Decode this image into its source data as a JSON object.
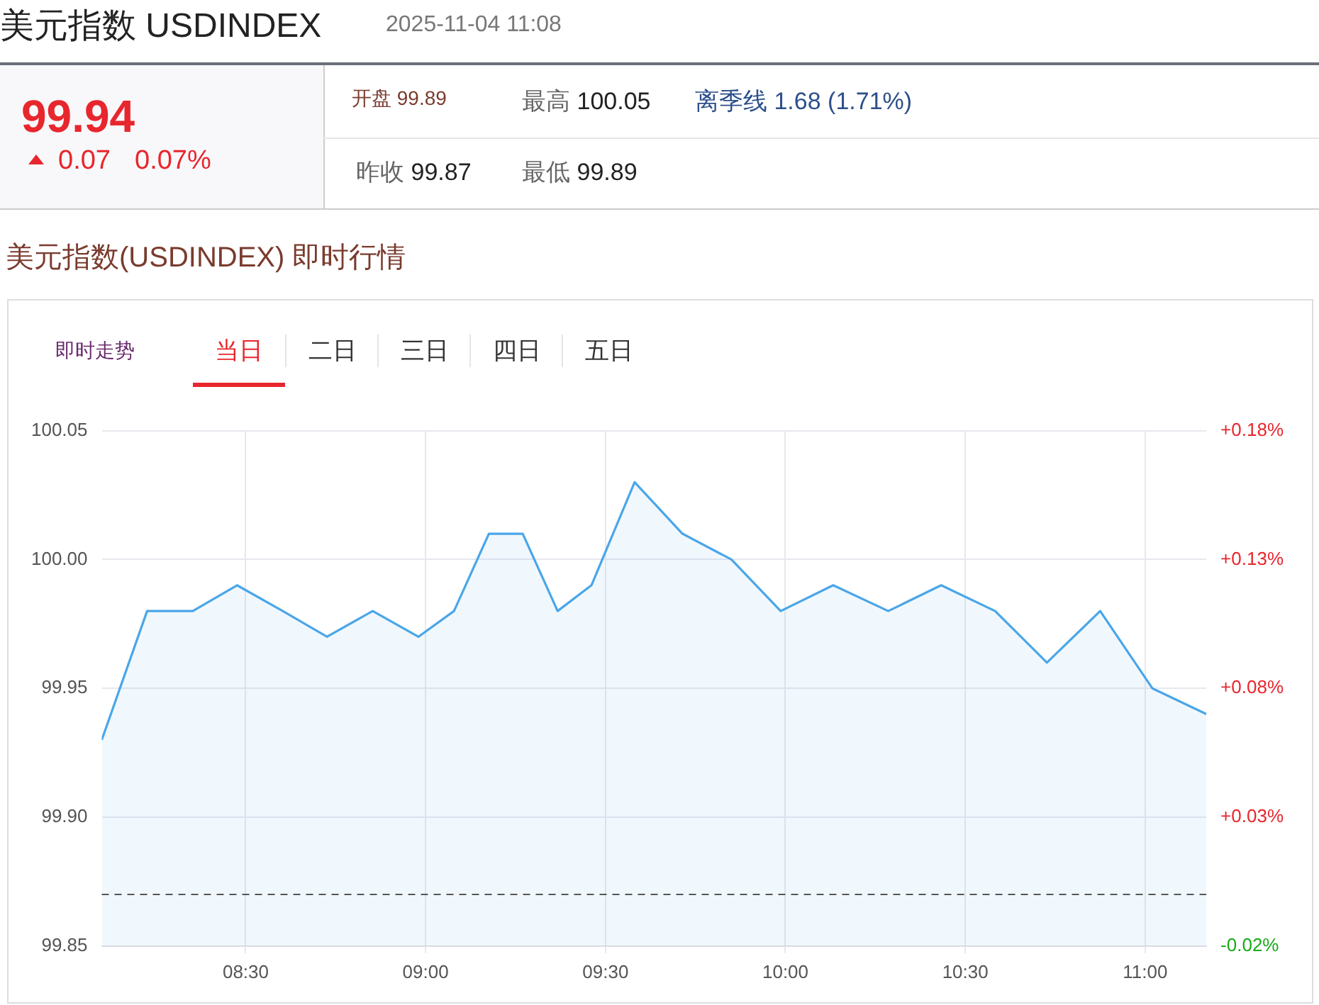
{
  "chart_data": {
    "type": "area",
    "title": "美元指数 USDINDEX",
    "subtitle": "美元指数(USDINDEX) 即时行情",
    "annotations": [
      "2025-11-04 11:08",
      "99.94",
      "0.07",
      "0.07%",
      "开盘",
      "99.89",
      "最高",
      "100.05",
      "离季线 1.68 (1.71%)",
      "昨收",
      "99.87",
      "最低",
      "99.89",
      "即时走势",
      "当日",
      "二日",
      "三日",
      "四日",
      "五日"
    ],
    "x": [
      8.1,
      8.226,
      8.353,
      8.476,
      8.603,
      8.726,
      8.853,
      8.98,
      9.079,
      9.176,
      9.27,
      9.367,
      9.461,
      9.581,
      9.714,
      9.85,
      9.987,
      10.133,
      10.286,
      10.433,
      10.583,
      10.727,
      10.875,
      11.02,
      11.17
    ],
    "series": [
      {
        "color": "#4aa6e8",
        "values": [
          99.93,
          99.98,
          99.98,
          99.99,
          99.98,
          99.97,
          99.98,
          99.97,
          99.98,
          100.01,
          100.01,
          99.98,
          99.99,
          100.03,
          100.01,
          100.0,
          99.98,
          99.99,
          99.98,
          99.99,
          99.98,
          99.96,
          99.98,
          99.95,
          99.94
        ]
      }
    ],
    "xlim": [
      8.1,
      11.17
    ],
    "xticks": [
      {
        "value": 8.5,
        "label": "08:30"
      },
      {
        "value": 9,
        "label": "09:00"
      },
      {
        "value": 9.5,
        "label": "09:30"
      },
      {
        "value": 10,
        "label": "10:00"
      },
      {
        "value": 10.5,
        "label": "10:30"
      },
      {
        "value": 11,
        "label": "11:00"
      }
    ],
    "ylim": [
      99.85,
      100.05
    ],
    "yticks": [
      99.85,
      {
        "value": 99.9,
        "label": "99.90"
      },
      99.95,
      {
        "value": 100,
        "label": "100.00"
      },
      100.05
    ],
    "y2lim": [
      -0.02,
      0.18
    ],
    "y2ticks": [
      {
        "value": -0.02,
        "label": "-0.02%"
      },
      {
        "value": 0.03,
        "label": "+0.03%"
      },
      {
        "value": 0.08,
        "label": "+0.08%"
      },
      {
        "value": 0.13,
        "label": "+0.13%"
      },
      {
        "value": 0.18,
        "label": "+0.18%"
      }
    ],
    "ref_lines": [
      {
        "axis": "y",
        "value": 99.87,
        "color": "#555555",
        "line_style": "dashed"
      }
    ],
    "grid": true,
    "legend": false,
    "marker": "none",
    "line_style": "solid"
  }
}
